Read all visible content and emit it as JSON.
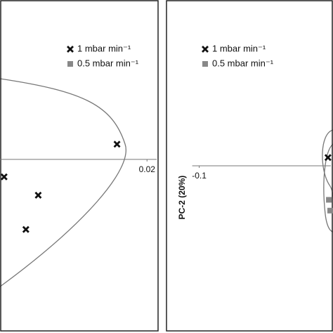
{
  "chart_data": [
    {
      "type": "scatter",
      "xlim": [
        -0.005,
        0.022
      ],
      "ylim": [
        -0.021,
        0.02
      ],
      "xticks": [
        0.02
      ],
      "series": [
        {
          "name": "1 mbar min⁻¹",
          "color": "#111111",
          "marker": "x",
          "x": [
            0.0149,
            -0.0043,
            0.0015,
            -0.0006
          ],
          "values": [
            0.0019,
            -0.0022,
            -0.0045,
            -0.0088
          ]
        },
        {
          "name": "0.5 mbar min⁻¹",
          "color": "#888888",
          "marker": "square",
          "x": [],
          "values": []
        }
      ]
    },
    {
      "type": "scatter",
      "ylabel": "PC-2 (20%)",
      "xlim": [
        -0.14,
        0.06
      ],
      "ylim": [
        -0.0194,
        0.02
      ],
      "xticks": [
        -0.1
      ],
      "series": [
        {
          "name": "1 mbar min⁻¹",
          "color": "#111111",
          "marker": "x",
          "x": [
            0.054
          ],
          "values": [
            0.001
          ]
        },
        {
          "name": "0.5 mbar min⁻¹",
          "color": "#888888",
          "marker": "square",
          "x": [
            0.055,
            0.0566
          ],
          "values": [
            -0.0041,
            -0.0054
          ]
        }
      ]
    }
  ]
}
